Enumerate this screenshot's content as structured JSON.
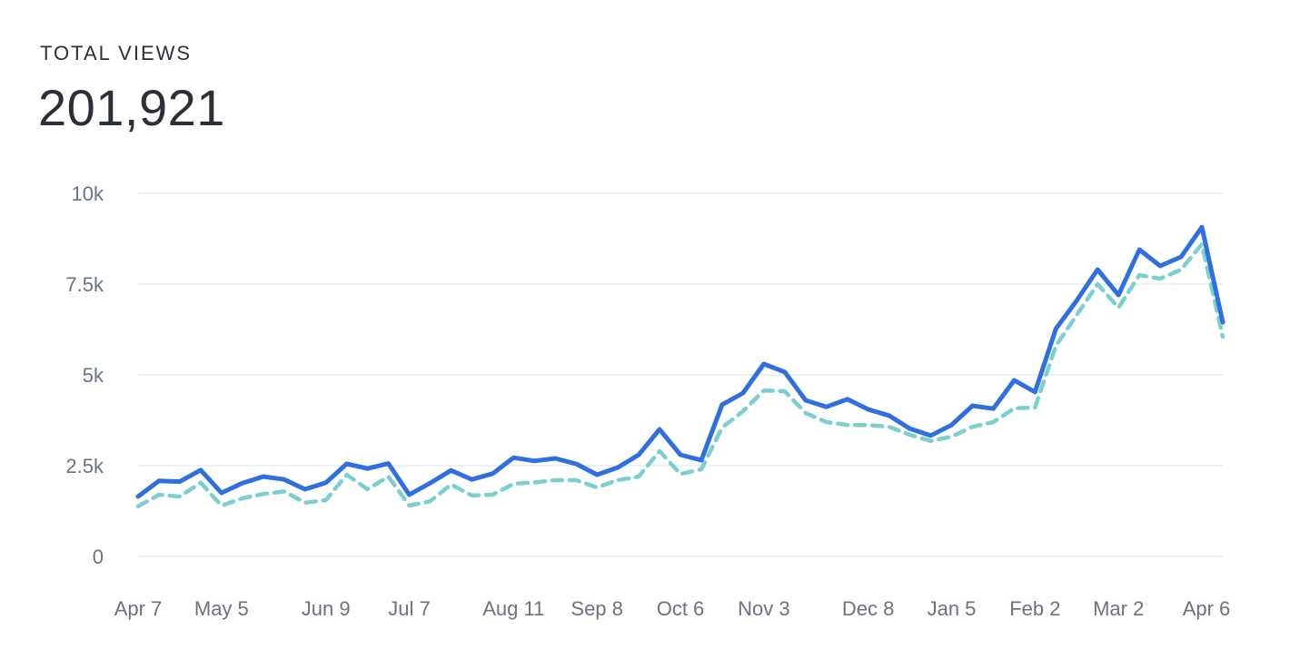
{
  "header": {
    "label": "TOTAL VIEWS",
    "value": "201,921"
  },
  "colors": {
    "primary_series": "#2f6fdf",
    "secondary_series": "#7ccfcf",
    "grid": "#eef0f3",
    "tick_text": "#6b7280"
  },
  "chart_data": {
    "type": "line",
    "title": "",
    "xlabel": "",
    "ylabel": "",
    "ylim": [
      0,
      10000
    ],
    "yticks": [
      {
        "value": 0,
        "label": "0"
      },
      {
        "value": 2500,
        "label": "2.5k"
      },
      {
        "value": 5000,
        "label": "5k"
      },
      {
        "value": 7500,
        "label": "7.5k"
      },
      {
        "value": 10000,
        "label": "10k"
      }
    ],
    "xticks": [
      {
        "index": 0,
        "label": "Apr 7"
      },
      {
        "index": 4,
        "label": "May 5"
      },
      {
        "index": 9,
        "label": "Jun 9"
      },
      {
        "index": 13,
        "label": "Jul 7"
      },
      {
        "index": 18,
        "label": "Aug 11"
      },
      {
        "index": 22,
        "label": "Sep 8"
      },
      {
        "index": 26,
        "label": "Oct 6"
      },
      {
        "index": 30,
        "label": "Nov 3"
      },
      {
        "index": 35,
        "label": "Dec 8"
      },
      {
        "index": 39,
        "label": "Jan 5"
      },
      {
        "index": 43,
        "label": "Feb 2"
      },
      {
        "index": 47,
        "label": "Mar 2"
      },
      {
        "index": 52,
        "label": "Apr 6"
      }
    ],
    "grid": true,
    "legend": "none",
    "series": [
      {
        "style": "solid",
        "values": [
          1650,
          2080,
          2060,
          2380,
          1750,
          2020,
          2200,
          2120,
          1850,
          2030,
          2550,
          2420,
          2560,
          1700,
          2020,
          2370,
          2120,
          2280,
          2720,
          2630,
          2700,
          2550,
          2250,
          2450,
          2800,
          3500,
          2800,
          2650,
          4180,
          4500,
          5300,
          5080,
          4300,
          4120,
          4330,
          4050,
          3880,
          3520,
          3330,
          3620,
          4150,
          4070,
          4850,
          4530,
          6270,
          7050,
          7900,
          7200,
          8450,
          8000,
          8250,
          9070,
          6450
        ]
      },
      {
        "style": "dashed",
        "values": [
          1380,
          1700,
          1650,
          2030,
          1400,
          1600,
          1720,
          1790,
          1480,
          1550,
          2250,
          1850,
          2200,
          1400,
          1520,
          1980,
          1680,
          1700,
          2000,
          2040,
          2100,
          2100,
          1900,
          2100,
          2200,
          2900,
          2270,
          2400,
          3550,
          4000,
          4570,
          4550,
          3950,
          3700,
          3620,
          3620,
          3570,
          3350,
          3180,
          3300,
          3570,
          3700,
          4080,
          4100,
          5800,
          6650,
          7500,
          6850,
          7750,
          7650,
          7900,
          8600,
          6050
        ]
      }
    ]
  }
}
